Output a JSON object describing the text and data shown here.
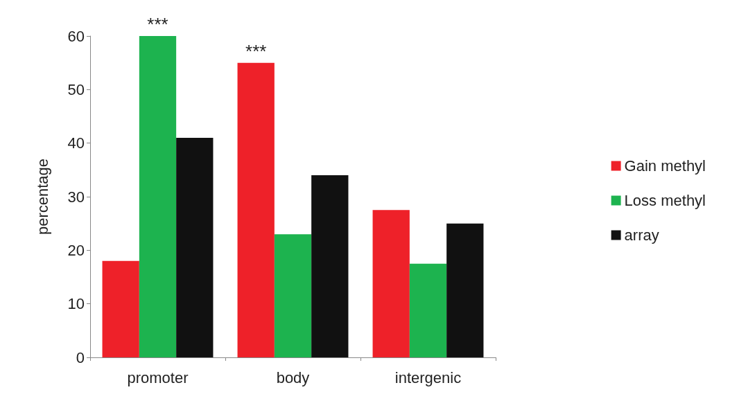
{
  "chart_data": {
    "type": "bar",
    "ylabel": "percentage",
    "categories": [
      "promoter",
      "body",
      "intergenic"
    ],
    "series": [
      {
        "name": "Gain methyl",
        "color": "#ee2129",
        "values": [
          18,
          55,
          27.5
        ]
      },
      {
        "name": "Loss methyl",
        "color": "#1db34f",
        "values": [
          60,
          23,
          17.5
        ]
      },
      {
        "name": "array",
        "color": "#111111",
        "values": [
          41,
          34,
          25
        ]
      }
    ],
    "ylim": [
      0,
      60
    ],
    "yticks": [
      0,
      10,
      20,
      30,
      40,
      50,
      60
    ],
    "grid": false,
    "legend": "right",
    "annotations": [
      "***",
      "***"
    ]
  }
}
